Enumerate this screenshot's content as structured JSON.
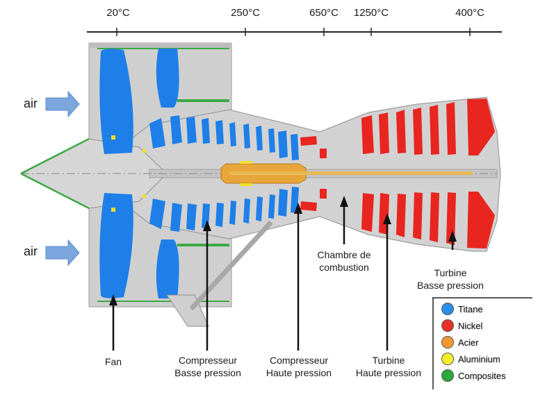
{
  "temperatures": [
    "20°C",
    "250°C",
    "650°C",
    "1250°C",
    "400°C"
  ],
  "air_labels": [
    "air",
    "air"
  ],
  "components": {
    "fan": "Fan",
    "lp_compressor": [
      "Compresseur",
      "Basse pression"
    ],
    "hp_compressor": [
      "Compresseur",
      "Haute pression"
    ],
    "combustion": [
      "Chambre de",
      "combustion"
    ],
    "hp_turbine": [
      "Turbine",
      "Haute pression"
    ],
    "lp_turbine": [
      "Turbine",
      "Basse pression"
    ]
  },
  "legend": [
    {
      "label": "Titane",
      "color": "#2a8fe6"
    },
    {
      "label": "Nickel",
      "color": "#e8302a"
    },
    {
      "label": "Acier",
      "color": "#f2992e"
    },
    {
      "label": "Aluminium",
      "color": "#f5ee2a"
    },
    {
      "label": "Composites",
      "color": "#2aa83a"
    }
  ],
  "material_colors": {
    "titanium": "#1e7fe8",
    "nickel": "#e8251f",
    "steel": "#e8a63a",
    "aluminium": "#efe02a",
    "composites": "#3aa844",
    "structure": "#cfcfcf"
  }
}
